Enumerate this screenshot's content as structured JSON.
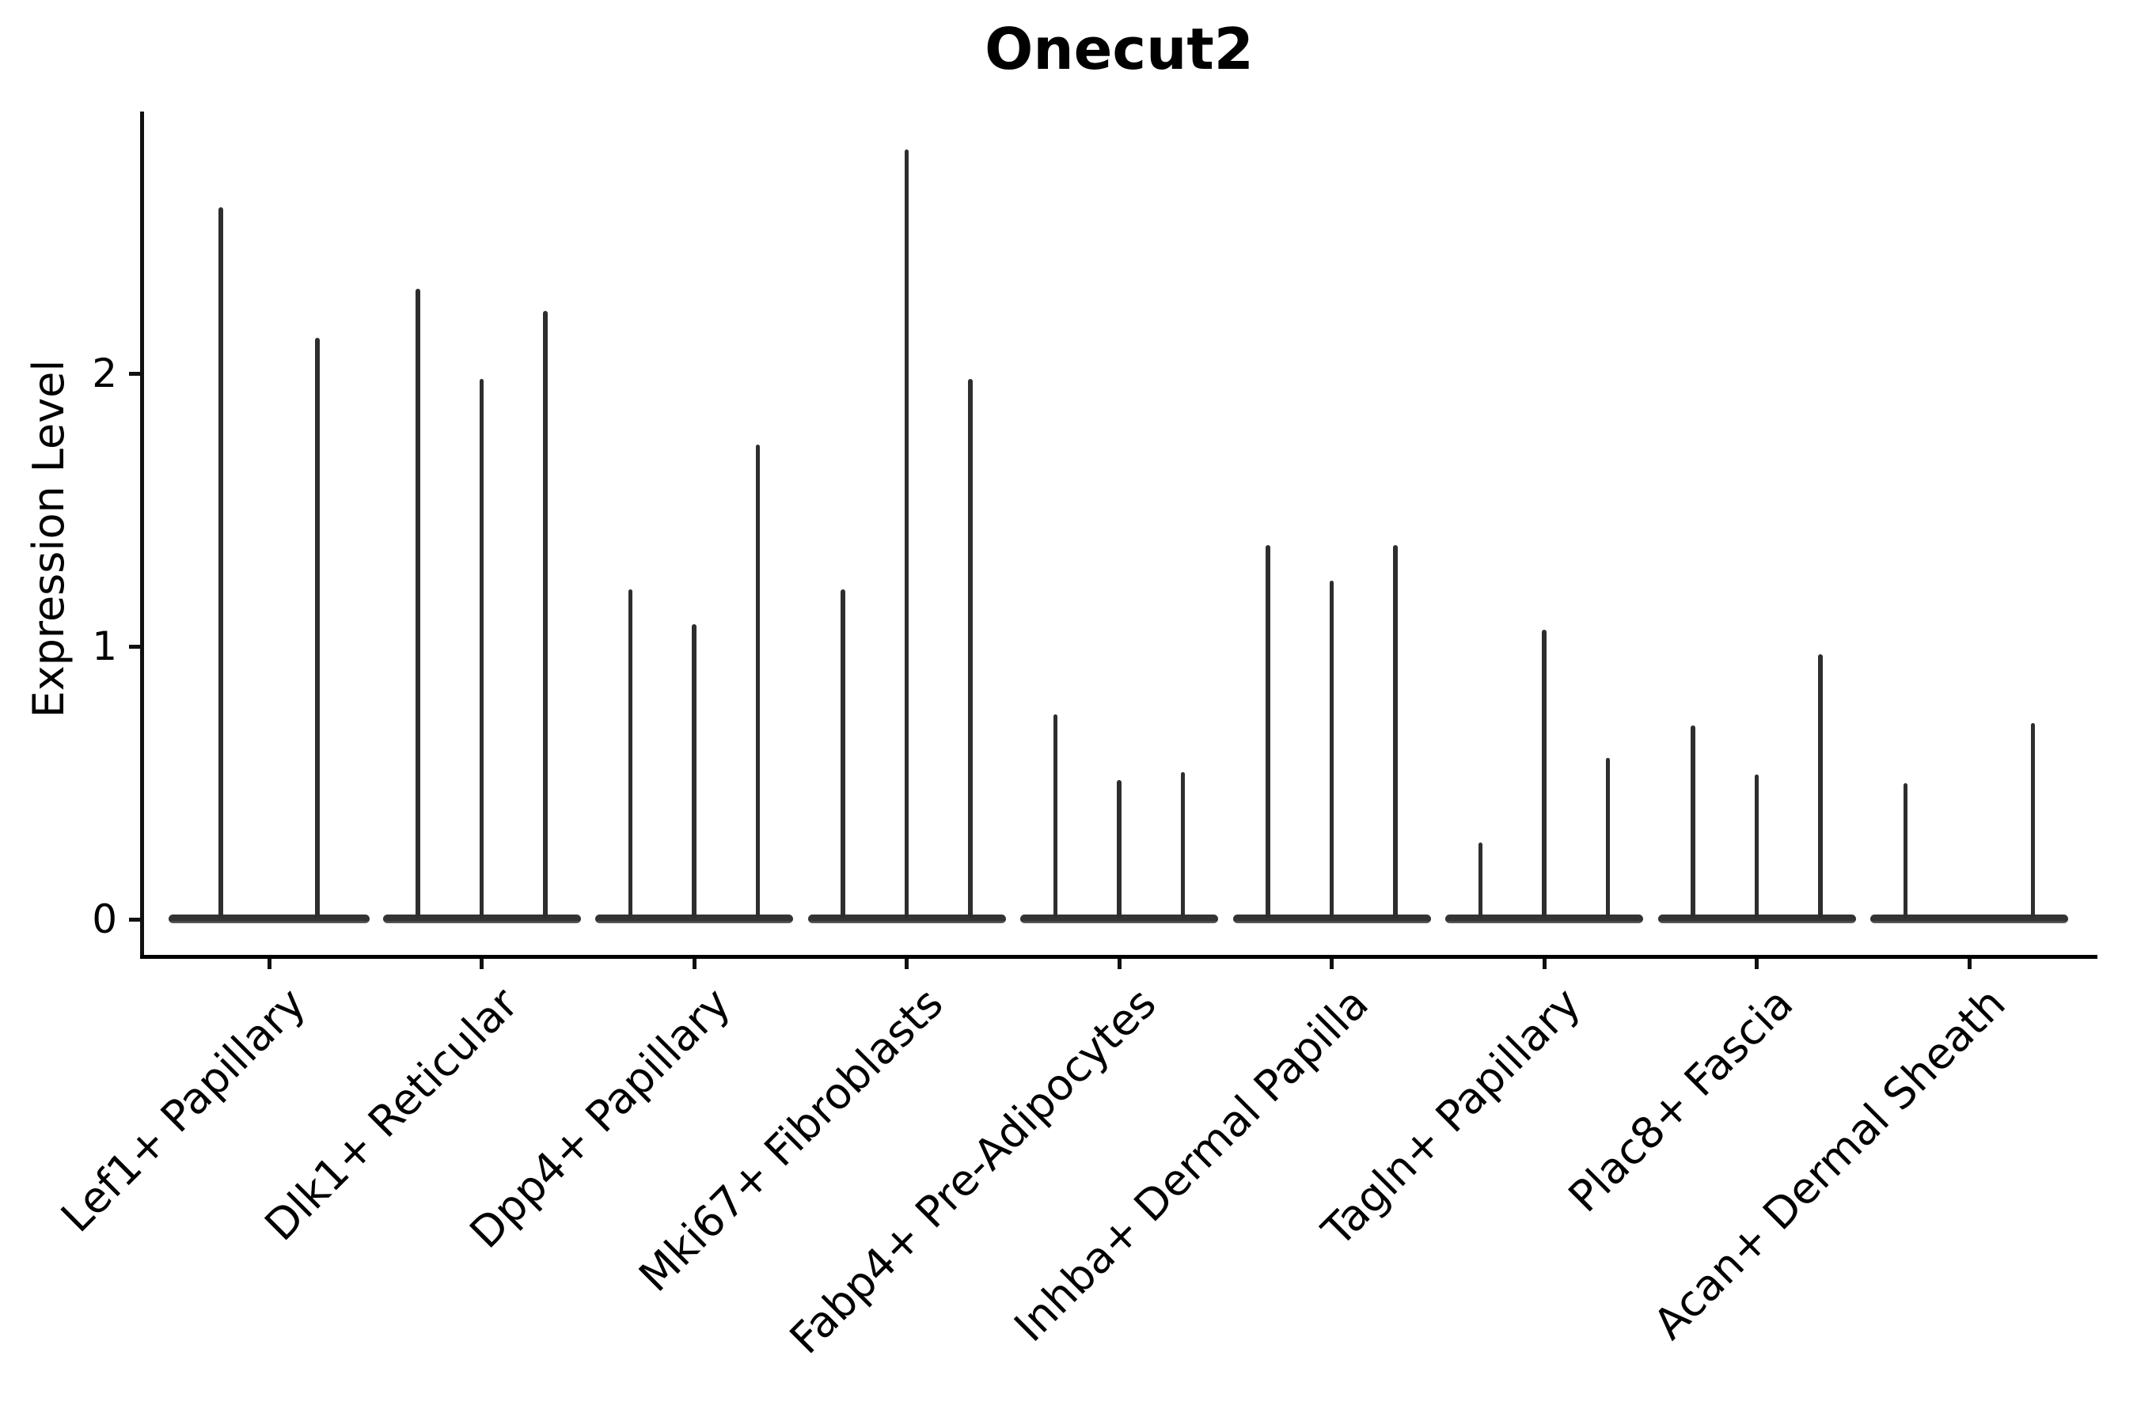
{
  "figure": {
    "title": "Onecut2"
  },
  "colors": {
    "background": "#ffffff",
    "axis": "#111111",
    "text": "#000000",
    "violin_fill": "#333333",
    "spike": "#2e2e2e"
  },
  "y_axis": {
    "label": "Expression Level",
    "tick_labels": [
      "0",
      "1",
      "2"
    ]
  },
  "x_axis": {
    "tick_labels": [
      "Lef1+ Papillary",
      "Dlk1+ Reticular",
      "Dpp4+ Papillary",
      "Mki67+ Fibroblasts",
      "Fabp4+ Pre-Adipocytes",
      "Inhba+ Dermal Papilla",
      "Tagln+ Papillary",
      "Plac8+ Fascia",
      "Acan+ Dermal Sheath"
    ]
  },
  "chart_data": {
    "type": "violin",
    "title": "Onecut2",
    "xlabel": "",
    "ylabel": "Expression Level",
    "categories": [
      "Lef1+ Papillary",
      "Dlk1+ Reticular",
      "Dpp4+ Papillary",
      "Mki67+ Fibroblasts",
      "Fabp4+ Pre-Adipocytes",
      "Inhba+ Dermal Papilla",
      "Tagln+ Papillary",
      "Plac8+ Fascia",
      "Acan+ Dermal Sheath"
    ],
    "yticks": [
      0,
      1,
      2
    ],
    "ylim": [
      -0.14,
      2.96
    ],
    "grid": false,
    "legend_position": "none",
    "violins_per_category": [
      2,
      3,
      3,
      3,
      3,
      3,
      3,
      3,
      3
    ],
    "max_expression": [
      [
        2.61,
        2.13
      ],
      [
        2.31,
        1.98,
        2.23
      ],
      [
        1.21,
        1.08,
        1.74
      ],
      [
        1.21,
        2.82,
        1.98
      ],
      [
        0.75,
        0.51,
        0.54
      ],
      [
        1.37,
        1.24,
        1.37
      ],
      [
        0.28,
        1.06,
        0.59
      ],
      [
        0.71,
        0.53,
        0.97
      ],
      [
        0.5,
        0.0,
        0.72
      ]
    ]
  }
}
